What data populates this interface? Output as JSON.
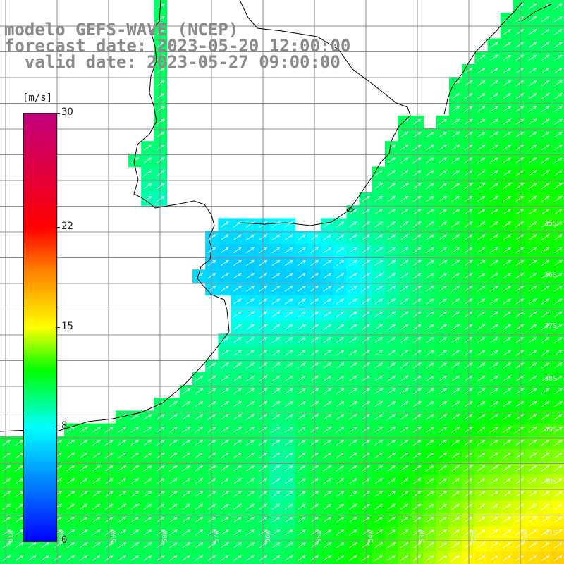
{
  "title": {
    "line1": "modelo GEFS-WAVE (NCEP)",
    "line2": "forecast date: 2023-05-20 12:00:00",
    "line3": "  valid date: 2023-05-27 09:00:00"
  },
  "colorbar": {
    "unit": "[m/s]",
    "ticks": [
      {
        "label": "30",
        "value": 30
      },
      {
        "label": "22",
        "value": 22
      },
      {
        "label": "15",
        "value": 15
      },
      {
        "label": "8",
        "value": 8
      },
      {
        "label": "0",
        "value": 0
      }
    ],
    "stops": [
      {
        "value": 0,
        "color": "#0000ff"
      },
      {
        "value": 8,
        "color": "#00ffff"
      },
      {
        "value": 12,
        "color": "#00ff00"
      },
      {
        "value": 15,
        "color": "#ffff00"
      },
      {
        "value": 19,
        "color": "#ff8000"
      },
      {
        "value": 22,
        "color": "#ff0000"
      },
      {
        "value": 30,
        "color": "#c0007f"
      }
    ]
  },
  "lat_labels": [
    "35S",
    "36S",
    "37S",
    "38S",
    "39S",
    "40S",
    "41S"
  ],
  "lon_labels": [
    "61W",
    "60W",
    "59W",
    "58W",
    "57W",
    "56W",
    "55W",
    "54W",
    "53W",
    "52W",
    "51W"
  ],
  "colors": {
    "land": "#ffffff",
    "grid": "#8c8c8c",
    "coast": "#000000",
    "arrow": "#ffffff"
  }
}
